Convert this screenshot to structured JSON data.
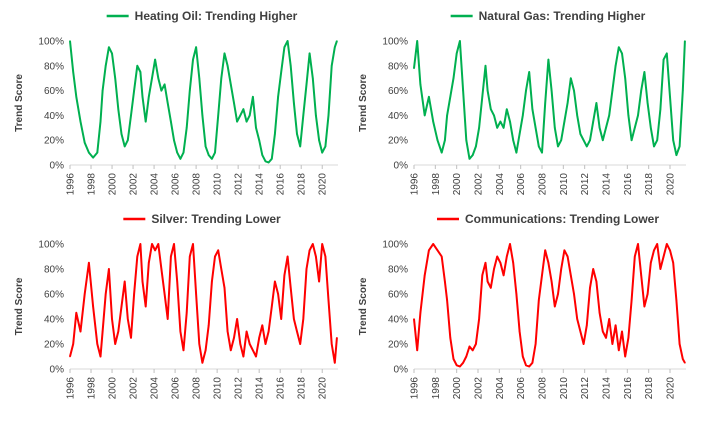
{
  "chart_data": [
    {
      "type": "line",
      "title": "Heating Oil: Trending Higher",
      "ylabel": "Trend Score",
      "color": "#00b050",
      "xlim": [
        1996,
        2021.5
      ],
      "ylim": [
        0,
        100
      ],
      "xticks": [
        "1996",
        "1998",
        "2000",
        "2002",
        "2004",
        "2006",
        "2008",
        "2010",
        "2012",
        "2014",
        "2016",
        "2018",
        "2020"
      ],
      "yticks": [
        "0%",
        "20%",
        "40%",
        "60%",
        "80%",
        "100%"
      ],
      "legend": "top-center",
      "grid": false,
      "x": [
        1996.0,
        1996.3,
        1996.6,
        1997.0,
        1997.4,
        1997.8,
        1998.2,
        1998.6,
        1998.9,
        1999.1,
        1999.4,
        1999.7,
        2000.0,
        2000.3,
        2000.6,
        2000.9,
        2001.2,
        2001.5,
        2001.8,
        2002.1,
        2002.4,
        2002.7,
        2002.9,
        2003.2,
        2003.5,
        2003.8,
        2004.1,
        2004.4,
        2004.7,
        2005.0,
        2005.3,
        2005.6,
        2005.9,
        2006.2,
        2006.5,
        2006.8,
        2007.1,
        2007.4,
        2007.7,
        2008.0,
        2008.3,
        2008.6,
        2008.9,
        2009.2,
        2009.5,
        2009.8,
        2010.1,
        2010.4,
        2010.7,
        2011.0,
        2011.3,
        2011.6,
        2011.9,
        2012.2,
        2012.5,
        2012.8,
        2013.1,
        2013.4,
        2013.7,
        2014.0,
        2014.3,
        2014.6,
        2014.9,
        2015.2,
        2015.5,
        2015.8,
        2016.1,
        2016.4,
        2016.7,
        2017.0,
        2017.3,
        2017.6,
        2017.9,
        2018.2,
        2018.5,
        2018.8,
        2019.1,
        2019.4,
        2019.7,
        2020.0,
        2020.3,
        2020.6,
        2020.9,
        2021.2,
        2021.4
      ],
      "y": [
        100,
        75,
        55,
        35,
        18,
        10,
        6,
        10,
        35,
        60,
        80,
        95,
        90,
        70,
        45,
        25,
        15,
        20,
        40,
        60,
        80,
        75,
        55,
        35,
        55,
        70,
        85,
        70,
        60,
        65,
        50,
        35,
        20,
        10,
        5,
        10,
        30,
        60,
        85,
        95,
        70,
        40,
        15,
        8,
        5,
        10,
        40,
        70,
        90,
        80,
        65,
        50,
        35,
        40,
        45,
        35,
        40,
        55,
        30,
        20,
        8,
        3,
        2,
        5,
        25,
        55,
        75,
        95,
        100,
        80,
        50,
        25,
        15,
        40,
        65,
        90,
        70,
        40,
        20,
        10,
        15,
        40,
        80,
        95,
        100
      ]
    },
    {
      "type": "line",
      "title": "Natural Gas: Trending Higher",
      "ylabel": "Trend Score",
      "color": "#00b050",
      "xlim": [
        1996,
        2021.5
      ],
      "ylim": [
        0,
        100
      ],
      "xticks": [
        "1996",
        "1998",
        "2000",
        "2002",
        "2004",
        "2006",
        "2008",
        "2010",
        "2012",
        "2014",
        "2016",
        "2018",
        "2020"
      ],
      "yticks": [
        "0%",
        "20%",
        "40%",
        "60%",
        "80%",
        "100%"
      ],
      "legend": "top-center",
      "grid": false,
      "x": [
        1996.0,
        1996.3,
        1996.6,
        1997.0,
        1997.4,
        1997.8,
        1998.2,
        1998.6,
        1998.9,
        1999.1,
        1999.4,
        1999.7,
        2000.0,
        2000.3,
        2000.6,
        2000.9,
        2001.2,
        2001.5,
        2001.8,
        2002.1,
        2002.4,
        2002.7,
        2002.9,
        2003.2,
        2003.5,
        2003.8,
        2004.1,
        2004.4,
        2004.7,
        2005.0,
        2005.3,
        2005.6,
        2005.9,
        2006.2,
        2006.5,
        2006.8,
        2007.1,
        2007.4,
        2007.7,
        2008.0,
        2008.3,
        2008.6,
        2008.9,
        2009.2,
        2009.5,
        2009.8,
        2010.1,
        2010.4,
        2010.7,
        2011.0,
        2011.3,
        2011.6,
        2011.9,
        2012.2,
        2012.5,
        2012.8,
        2013.1,
        2013.4,
        2013.7,
        2014.0,
        2014.3,
        2014.6,
        2014.9,
        2015.2,
        2015.5,
        2015.8,
        2016.1,
        2016.4,
        2016.7,
        2017.0,
        2017.3,
        2017.6,
        2017.9,
        2018.2,
        2018.5,
        2018.8,
        2019.1,
        2019.4,
        2019.7,
        2020.0,
        2020.3,
        2020.6,
        2020.9,
        2021.2,
        2021.4
      ],
      "y": [
        78,
        100,
        65,
        40,
        55,
        35,
        20,
        10,
        20,
        40,
        55,
        70,
        90,
        100,
        60,
        20,
        5,
        8,
        15,
        30,
        55,
        80,
        60,
        45,
        40,
        30,
        35,
        30,
        45,
        35,
        20,
        10,
        25,
        40,
        60,
        75,
        45,
        30,
        15,
        10,
        50,
        85,
        60,
        30,
        15,
        20,
        35,
        50,
        70,
        60,
        40,
        25,
        20,
        15,
        20,
        35,
        50,
        30,
        20,
        30,
        40,
        60,
        80,
        95,
        90,
        70,
        40,
        20,
        30,
        40,
        60,
        75,
        50,
        30,
        15,
        20,
        45,
        85,
        90,
        55,
        20,
        8,
        15,
        60,
        100
      ]
    },
    {
      "type": "line",
      "title": "Silver: Trending Lower",
      "ylabel": "Trend Score",
      "color": "#ff0000",
      "xlim": [
        1996,
        2021.5
      ],
      "ylim": [
        0,
        100
      ],
      "xticks": [
        "1996",
        "1998",
        "2000",
        "2002",
        "2004",
        "2006",
        "2008",
        "2010",
        "2012",
        "2014",
        "2016",
        "2018",
        "2020"
      ],
      "yticks": [
        "0%",
        "20%",
        "40%",
        "60%",
        "80%",
        "100%"
      ],
      "legend": "top-center",
      "grid": false,
      "x": [
        1996.0,
        1996.3,
        1996.6,
        1997.0,
        1997.4,
        1997.8,
        1998.2,
        1998.6,
        1998.9,
        1999.1,
        1999.4,
        1999.7,
        2000.0,
        2000.3,
        2000.6,
        2000.9,
        2001.2,
        2001.5,
        2001.8,
        2002.1,
        2002.4,
        2002.7,
        2002.9,
        2003.2,
        2003.5,
        2003.8,
        2004.1,
        2004.4,
        2004.7,
        2005.0,
        2005.3,
        2005.6,
        2005.9,
        2006.2,
        2006.5,
        2006.8,
        2007.1,
        2007.4,
        2007.7,
        2008.0,
        2008.3,
        2008.6,
        2008.9,
        2009.2,
        2009.5,
        2009.8,
        2010.1,
        2010.4,
        2010.7,
        2011.0,
        2011.3,
        2011.6,
        2011.9,
        2012.2,
        2012.5,
        2012.8,
        2013.1,
        2013.4,
        2013.7,
        2014.0,
        2014.3,
        2014.6,
        2014.9,
        2015.2,
        2015.5,
        2015.8,
        2016.1,
        2016.4,
        2016.7,
        2017.0,
        2017.3,
        2017.6,
        2017.9,
        2018.2,
        2018.5,
        2018.8,
        2019.1,
        2019.4,
        2019.7,
        2020.0,
        2020.3,
        2020.6,
        2020.9,
        2021.2,
        2021.4
      ],
      "y": [
        10,
        20,
        45,
        30,
        60,
        85,
        50,
        20,
        10,
        30,
        60,
        80,
        40,
        20,
        30,
        50,
        70,
        40,
        25,
        60,
        90,
        100,
        70,
        50,
        85,
        100,
        95,
        100,
        80,
        60,
        40,
        90,
        100,
        70,
        30,
        15,
        45,
        90,
        100,
        60,
        20,
        5,
        15,
        35,
        70,
        90,
        95,
        80,
        65,
        30,
        15,
        25,
        40,
        20,
        10,
        30,
        20,
        15,
        10,
        25,
        35,
        20,
        30,
        50,
        70,
        60,
        40,
        75,
        90,
        65,
        40,
        30,
        20,
        40,
        80,
        95,
        100,
        90,
        70,
        100,
        90,
        55,
        20,
        5,
        25
      ]
    },
    {
      "type": "line",
      "title": "Communications: Trending Lower",
      "ylabel": "Trend Score",
      "color": "#ff0000",
      "xlim": [
        1996,
        2021.5
      ],
      "ylim": [
        0,
        100
      ],
      "xticks": [
        "1996",
        "1998",
        "2000",
        "2002",
        "2004",
        "2006",
        "2008",
        "2010",
        "2012",
        "2014",
        "2016",
        "2018",
        "2020"
      ],
      "yticks": [
        "0%",
        "20%",
        "40%",
        "60%",
        "80%",
        "100%"
      ],
      "legend": "top-center",
      "grid": false,
      "x": [
        1996.0,
        1996.3,
        1996.6,
        1997.0,
        1997.4,
        1997.8,
        1998.2,
        1998.6,
        1998.9,
        1999.1,
        1999.4,
        1999.7,
        2000.0,
        2000.3,
        2000.6,
        2000.9,
        2001.2,
        2001.5,
        2001.8,
        2002.1,
        2002.4,
        2002.7,
        2002.9,
        2003.2,
        2003.5,
        2003.8,
        2004.1,
        2004.4,
        2004.7,
        2005.0,
        2005.3,
        2005.6,
        2005.9,
        2006.2,
        2006.5,
        2006.8,
        2007.1,
        2007.4,
        2007.7,
        2008.0,
        2008.3,
        2008.6,
        2008.9,
        2009.2,
        2009.5,
        2009.8,
        2010.1,
        2010.4,
        2010.7,
        2011.0,
        2011.3,
        2011.6,
        2011.9,
        2012.2,
        2012.5,
        2012.8,
        2013.1,
        2013.4,
        2013.7,
        2014.0,
        2014.3,
        2014.6,
        2014.9,
        2015.2,
        2015.5,
        2015.8,
        2016.1,
        2016.4,
        2016.7,
        2017.0,
        2017.3,
        2017.6,
        2017.9,
        2018.2,
        2018.5,
        2018.8,
        2019.1,
        2019.4,
        2019.7,
        2020.0,
        2020.3,
        2020.6,
        2020.9,
        2021.2,
        2021.4
      ],
      "y": [
        40,
        15,
        45,
        75,
        95,
        100,
        95,
        90,
        70,
        55,
        25,
        8,
        3,
        2,
        5,
        10,
        18,
        15,
        20,
        40,
        75,
        85,
        70,
        65,
        80,
        90,
        85,
        75,
        90,
        100,
        85,
        60,
        30,
        10,
        3,
        2,
        5,
        20,
        55,
        75,
        95,
        85,
        70,
        50,
        60,
        80,
        95,
        90,
        75,
        60,
        40,
        30,
        20,
        35,
        65,
        80,
        70,
        45,
        30,
        25,
        40,
        20,
        35,
        15,
        30,
        10,
        25,
        55,
        90,
        100,
        75,
        50,
        60,
        85,
        95,
        100,
        80,
        90,
        100,
        95,
        85,
        55,
        20,
        8,
        5
      ]
    }
  ]
}
